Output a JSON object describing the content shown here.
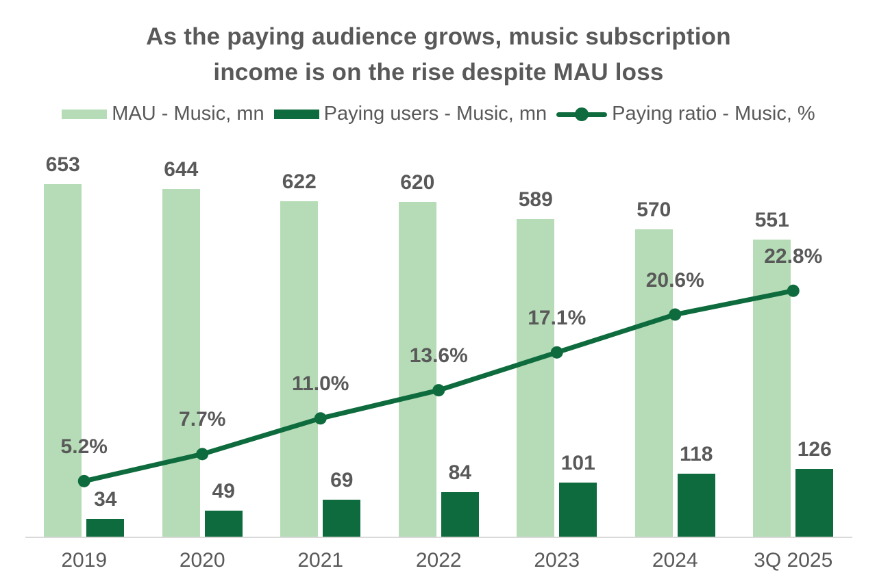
{
  "title": "As the paying audience grows, music subscription income is on the rise despite MAU loss",
  "title_lines": [
    "As the paying audience grows, music subscription",
    "income is on the rise despite MAU loss"
  ],
  "colors": {
    "light_green": "#b5dcb6",
    "dark_green": "#0e6b3d",
    "text_gray": "#595959",
    "axis_line": "#d9d9d9",
    "background": "#ffffff"
  },
  "chart_data": {
    "type": "bar",
    "subtype": "combo-bar-line",
    "title": "As the paying audience grows, music subscription income is on the rise despite MAU loss",
    "categories": [
      "2019",
      "2020",
      "2021",
      "2022",
      "2023",
      "2024",
      "3Q 2025"
    ],
    "series": [
      {
        "name": "MAU - Music, mn",
        "type": "bar",
        "color": "#b5dcb6",
        "values": [
          653,
          644,
          622,
          620,
          589,
          570,
          551
        ],
        "labels": [
          "653",
          "644",
          "622",
          "620",
          "589",
          "570",
          "551"
        ]
      },
      {
        "name": "Paying users - Music, mn",
        "type": "bar",
        "color": "#0e6b3d",
        "values": [
          34,
          49,
          69,
          84,
          101,
          118,
          126
        ],
        "labels": [
          "34",
          "49",
          "69",
          "84",
          "101",
          "118",
          "126"
        ]
      },
      {
        "name": "Paying ratio - Music, %",
        "type": "line",
        "axis": "secondary",
        "color": "#0e6b3d",
        "values": [
          5.2,
          7.7,
          11.0,
          13.6,
          17.1,
          20.6,
          22.8
        ],
        "labels": [
          "5.2%",
          "7.7%",
          "11.0%",
          "13.6%",
          "17.1%",
          "20.6%",
          "22.8%"
        ]
      }
    ],
    "primary_axis": {
      "min": 0,
      "max": 700,
      "ticks_visible": false
    },
    "secondary_axis": {
      "min": 0,
      "max": 35,
      "ticks_visible": false
    },
    "grid": false,
    "legend_position": "top",
    "data_labels": true
  }
}
